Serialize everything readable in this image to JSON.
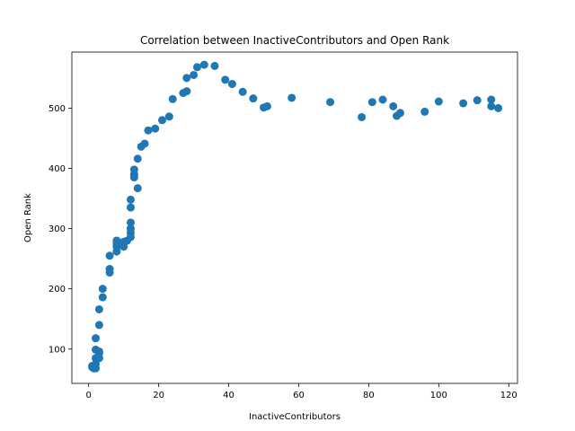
{
  "chart_data": {
    "type": "scatter",
    "title": "Correlation between InactiveContributors and Open Rank",
    "xlabel": "InactiveContributors",
    "ylabel": "Open Rank",
    "xlim": [
      -4.8,
      122.5
    ],
    "ylim": [
      43,
      593
    ],
    "xticks": [
      0,
      20,
      40,
      60,
      80,
      100,
      120
    ],
    "yticks": [
      100,
      200,
      300,
      400,
      500
    ],
    "grid": false,
    "marker_color": "#1f77b4",
    "points": [
      {
        "x": 1,
        "y": 70
      },
      {
        "x": 1,
        "y": 72
      },
      {
        "x": 1.5,
        "y": 68
      },
      {
        "x": 2,
        "y": 75
      },
      {
        "x": 2,
        "y": 68
      },
      {
        "x": 2,
        "y": 85
      },
      {
        "x": 2,
        "y": 99
      },
      {
        "x": 2,
        "y": 118
      },
      {
        "x": 3,
        "y": 96
      },
      {
        "x": 3,
        "y": 93
      },
      {
        "x": 3,
        "y": 85
      },
      {
        "x": 3,
        "y": 140
      },
      {
        "x": 3,
        "y": 166
      },
      {
        "x": 4,
        "y": 186
      },
      {
        "x": 4,
        "y": 200
      },
      {
        "x": 6,
        "y": 227
      },
      {
        "x": 6,
        "y": 233
      },
      {
        "x": 6,
        "y": 255
      },
      {
        "x": 8,
        "y": 262
      },
      {
        "x": 8,
        "y": 270
      },
      {
        "x": 8,
        "y": 275
      },
      {
        "x": 8,
        "y": 280
      },
      {
        "x": 10,
        "y": 270
      },
      {
        "x": 10,
        "y": 278
      },
      {
        "x": 11,
        "y": 280
      },
      {
        "x": 12,
        "y": 286
      },
      {
        "x": 12,
        "y": 293
      },
      {
        "x": 12,
        "y": 300
      },
      {
        "x": 12,
        "y": 310
      },
      {
        "x": 12,
        "y": 335
      },
      {
        "x": 12,
        "y": 348
      },
      {
        "x": 13,
        "y": 385
      },
      {
        "x": 13,
        "y": 390
      },
      {
        "x": 13,
        "y": 398
      },
      {
        "x": 14,
        "y": 367
      },
      {
        "x": 14,
        "y": 416
      },
      {
        "x": 15,
        "y": 436
      },
      {
        "x": 16,
        "y": 441
      },
      {
        "x": 17,
        "y": 463
      },
      {
        "x": 19,
        "y": 466
      },
      {
        "x": 21,
        "y": 480
      },
      {
        "x": 23,
        "y": 486
      },
      {
        "x": 24,
        "y": 515
      },
      {
        "x": 27,
        "y": 525
      },
      {
        "x": 28,
        "y": 528
      },
      {
        "x": 28,
        "y": 550
      },
      {
        "x": 30,
        "y": 555
      },
      {
        "x": 31,
        "y": 568
      },
      {
        "x": 33,
        "y": 572
      },
      {
        "x": 36,
        "y": 570
      },
      {
        "x": 39,
        "y": 547
      },
      {
        "x": 41,
        "y": 540
      },
      {
        "x": 44,
        "y": 527
      },
      {
        "x": 47,
        "y": 516
      },
      {
        "x": 50,
        "y": 501
      },
      {
        "x": 51,
        "y": 503
      },
      {
        "x": 58,
        "y": 517
      },
      {
        "x": 69,
        "y": 510
      },
      {
        "x": 78,
        "y": 485
      },
      {
        "x": 81,
        "y": 510
      },
      {
        "x": 84,
        "y": 514
      },
      {
        "x": 87,
        "y": 503
      },
      {
        "x": 88,
        "y": 487
      },
      {
        "x": 89,
        "y": 492
      },
      {
        "x": 96,
        "y": 494
      },
      {
        "x": 100,
        "y": 511
      },
      {
        "x": 107,
        "y": 508
      },
      {
        "x": 111,
        "y": 513
      },
      {
        "x": 115,
        "y": 514
      },
      {
        "x": 115,
        "y": 503
      },
      {
        "x": 117,
        "y": 500
      }
    ]
  }
}
